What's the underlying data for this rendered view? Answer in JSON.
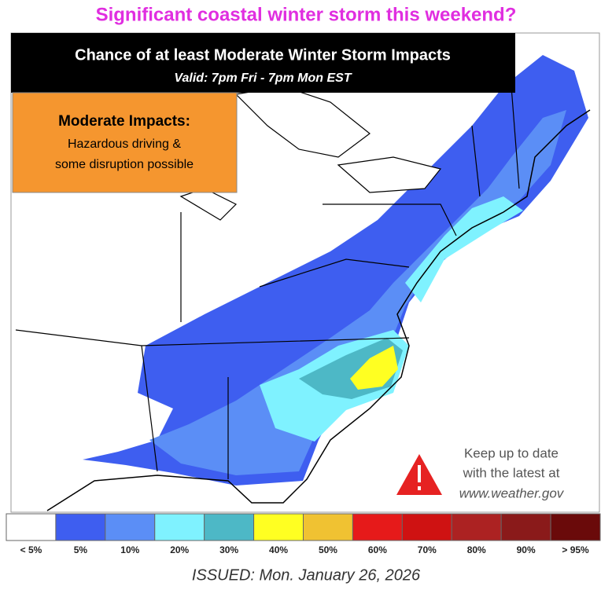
{
  "title": "Significant coastal winter storm this weekend?",
  "header": {
    "title": "Chance of at least Moderate Winter Storm Impacts",
    "subtitle": "Valid: 7pm Fri - 7pm Mon EST"
  },
  "impact_box": {
    "title": "Moderate Impacts:",
    "lines": [
      "Hazardous driving &",
      "some disruption possible"
    ]
  },
  "notice": {
    "lines": [
      "Keep up to date",
      "with the latest at",
      "www.weather.gov"
    ]
  },
  "legend": [
    {
      "label": "< 5%",
      "color": "#ffffff"
    },
    {
      "label": "5%",
      "color": "#3e5ef0"
    },
    {
      "label": "10%",
      "color": "#5b8ef6"
    },
    {
      "label": "20%",
      "color": "#7ff2ff"
    },
    {
      "label": "30%",
      "color": "#4db8c6"
    },
    {
      "label": "40%",
      "color": "#ffff22"
    },
    {
      "label": "50%",
      "color": "#f0c232"
    },
    {
      "label": "60%",
      "color": "#e61a1a"
    },
    {
      "label": "70%",
      "color": "#cf1212"
    },
    {
      "label": "80%",
      "color": "#ac2222"
    },
    {
      "label": "90%",
      "color": "#8a1a1a"
    },
    {
      "label": "> 95%",
      "color": "#6a0a0a"
    }
  ],
  "footer": "ISSUED: Mon. January 26, 2026"
}
